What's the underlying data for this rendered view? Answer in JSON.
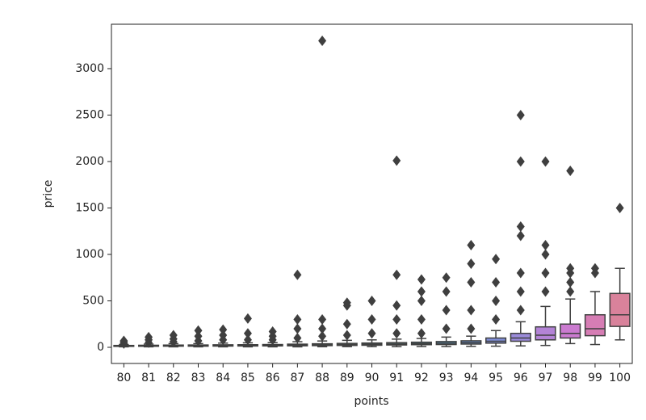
{
  "chart_data": {
    "type": "box",
    "x_label": "points",
    "y_label": "price",
    "categories": [
      "80",
      "81",
      "82",
      "83",
      "84",
      "85",
      "86",
      "87",
      "88",
      "89",
      "90",
      "91",
      "92",
      "93",
      "94",
      "95",
      "96",
      "97",
      "98",
      "99",
      "100"
    ],
    "whislo": [
      5,
      5,
      5,
      5,
      5,
      5,
      5,
      5,
      6,
      7,
      7,
      7,
      8,
      8,
      10,
      12,
      15,
      20,
      40,
      30,
      80
    ],
    "q1": [
      10,
      11,
      12,
      12,
      13,
      14,
      15,
      16,
      18,
      20,
      22,
      25,
      28,
      30,
      35,
      45,
      65,
      80,
      100,
      125,
      225
    ],
    "median": [
      15,
      16,
      17,
      18,
      19,
      20,
      22,
      24,
      27,
      30,
      33,
      36,
      40,
      45,
      50,
      65,
      100,
      130,
      150,
      200,
      350
    ],
    "q3": [
      20,
      22,
      24,
      25,
      27,
      28,
      30,
      34,
      38,
      42,
      46,
      50,
      55,
      62,
      70,
      100,
      150,
      220,
      250,
      350,
      580
    ],
    "whishi": [
      30,
      35,
      40,
      40,
      45,
      48,
      50,
      60,
      68,
      75,
      80,
      88,
      95,
      110,
      120,
      180,
      275,
      440,
      520,
      600,
      850
    ],
    "outliers": [
      [
        40,
        55,
        70
      ],
      [
        50,
        80,
        110
      ],
      [
        60,
        90,
        130
      ],
      [
        70,
        120,
        180
      ],
      [
        80,
        130,
        190
      ],
      [
        80,
        150,
        310
      ],
      [
        80,
        120,
        170
      ],
      [
        100,
        200,
        300,
        780
      ],
      [
        120,
        200,
        300,
        3300
      ],
      [
        130,
        250,
        450,
        480
      ],
      [
        150,
        300,
        500
      ],
      [
        150,
        300,
        450,
        780,
        2010
      ],
      [
        150,
        300,
        500,
        600,
        730
      ],
      [
        200,
        400,
        600,
        750
      ],
      [
        200,
        400,
        700,
        900,
        1100
      ],
      [
        300,
        500,
        700,
        950
      ],
      [
        400,
        600,
        800,
        1200,
        1300,
        2000,
        2500
      ],
      [
        600,
        800,
        1000,
        1100,
        2000
      ],
      [
        600,
        700,
        800,
        850,
        1900
      ],
      [
        800,
        850
      ],
      [
        1500
      ]
    ],
    "colors": [
      "#d5806f",
      "#d18a5f",
      "#c49353",
      "#b49a4e",
      "#a29f4c",
      "#8fa44d",
      "#74a74f",
      "#55aa5e",
      "#4fa87d",
      "#51a690",
      "#52a59e",
      "#54a3aa",
      "#56a1b7",
      "#5a9dc6",
      "#6b96d7",
      "#8290db",
      "#9b8bdb",
      "#b383d6",
      "#cb7bd0",
      "#d67db4",
      "#d9829b"
    ],
    "ylim": [
      -174,
      3478
    ],
    "yticks": [
      0,
      500,
      1000,
      1500,
      2000,
      2500,
      3000
    ]
  }
}
